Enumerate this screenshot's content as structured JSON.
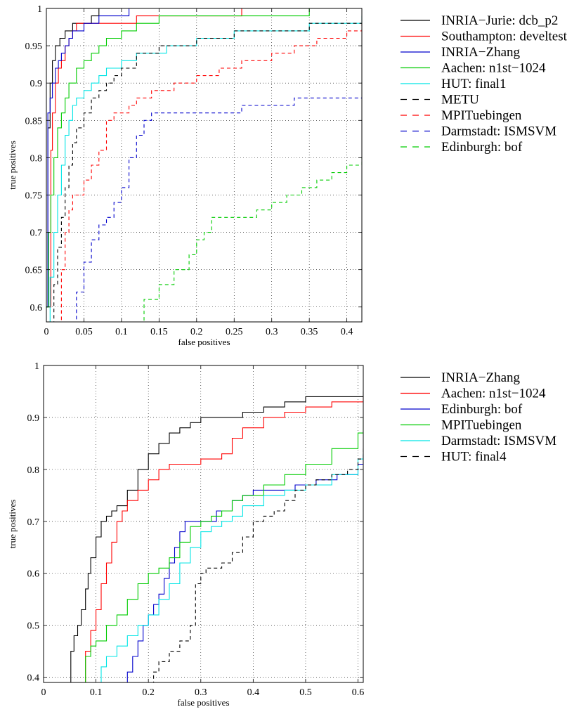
{
  "chart_data": [
    {
      "type": "line",
      "title": "",
      "xlabel": "false positives",
      "ylabel": "true positives",
      "xlim": [
        0,
        0.42
      ],
      "ylim": [
        0.58,
        1.0
      ],
      "xticks": [
        0,
        0.05,
        0.1,
        0.15,
        0.2,
        0.25,
        0.3,
        0.35,
        0.4
      ],
      "xtick_labels": [
        "0",
        "0.05",
        "0.1",
        "0.15",
        "0.2",
        "0.25",
        "0.3",
        "0.35",
        "0.4"
      ],
      "yticks": [
        0.6,
        0.65,
        0.7,
        0.75,
        0.8,
        0.85,
        0.9,
        0.95,
        1
      ],
      "ytick_labels": [
        "0.6",
        "0.65",
        "0.7",
        "0.75",
        "0.8",
        "0.85",
        "0.9",
        "0.95",
        "1"
      ],
      "grid": true,
      "legend_position": "outside-right",
      "series": [
        {
          "name": "INRIA−Jurie: dcb_p2",
          "color": "#000000",
          "dash": "solid",
          "x": [
            0.0,
            0.002,
            0.005,
            0.008,
            0.012,
            0.018,
            0.025,
            0.035,
            0.05,
            0.06,
            0.07,
            0.08,
            0.1,
            0.15,
            0.3,
            0.42
          ],
          "y": [
            0.6,
            0.84,
            0.9,
            0.93,
            0.95,
            0.96,
            0.97,
            0.98,
            0.98,
            0.99,
            1.0,
            1.0,
            1.0,
            1.0,
            1.0,
            1.0
          ]
        },
        {
          "name": "Southampton: develtest",
          "color": "#ff0000",
          "dash": "solid",
          "x": [
            0.004,
            0.006,
            0.008,
            0.012,
            0.016,
            0.02,
            0.025,
            0.03,
            0.035,
            0.04,
            0.05,
            0.06,
            0.08,
            0.12,
            0.2,
            0.26,
            0.3,
            0.42
          ],
          "y": [
            0.6,
            0.81,
            0.86,
            0.9,
            0.92,
            0.93,
            0.95,
            0.96,
            0.97,
            0.98,
            0.98,
            0.98,
            0.98,
            0.99,
            0.99,
            1.0,
            1.0,
            1.0
          ]
        },
        {
          "name": "INRIA−Zhang",
          "color": "#0000cc",
          "dash": "solid",
          "x": [
            0.0,
            0.002,
            0.005,
            0.008,
            0.012,
            0.016,
            0.02,
            0.025,
            0.03,
            0.035,
            0.04,
            0.05,
            0.06,
            0.07,
            0.08,
            0.11,
            0.16,
            0.25,
            0.42
          ],
          "y": [
            0.6,
            0.86,
            0.88,
            0.9,
            0.92,
            0.93,
            0.94,
            0.95,
            0.96,
            0.97,
            0.97,
            0.98,
            0.98,
            0.99,
            0.99,
            1.0,
            1.0,
            1.0,
            1.0
          ]
        },
        {
          "name": "Aachen: n1st−1024",
          "color": "#00cc00",
          "dash": "solid",
          "x": [
            0.0,
            0.003,
            0.006,
            0.01,
            0.015,
            0.02,
            0.025,
            0.03,
            0.04,
            0.05,
            0.06,
            0.07,
            0.08,
            0.1,
            0.12,
            0.15,
            0.2,
            0.25,
            0.3,
            0.35,
            0.42
          ],
          "y": [
            0.6,
            0.7,
            0.75,
            0.8,
            0.84,
            0.86,
            0.88,
            0.9,
            0.92,
            0.93,
            0.94,
            0.95,
            0.96,
            0.97,
            0.98,
            0.99,
            0.99,
            0.99,
            0.99,
            1.0,
            1.0
          ]
        },
        {
          "name": "HUT: final1",
          "color": "#00e5e5",
          "dash": "solid",
          "x": [
            0.0,
            0.005,
            0.01,
            0.015,
            0.02,
            0.025,
            0.03,
            0.035,
            0.04,
            0.05,
            0.06,
            0.07,
            0.08,
            0.1,
            0.12,
            0.14,
            0.16,
            0.18,
            0.2,
            0.25,
            0.3,
            0.35,
            0.4,
            0.42
          ],
          "y": [
            0.58,
            0.64,
            0.7,
            0.75,
            0.79,
            0.83,
            0.85,
            0.87,
            0.88,
            0.89,
            0.9,
            0.91,
            0.92,
            0.93,
            0.94,
            0.94,
            0.95,
            0.95,
            0.96,
            0.97,
            0.97,
            0.98,
            0.98,
            0.99
          ]
        },
        {
          "name": "METU",
          "color": "#000000",
          "dash": "dashed",
          "x": [
            0.006,
            0.01,
            0.015,
            0.02,
            0.025,
            0.03,
            0.035,
            0.04,
            0.05,
            0.06,
            0.07,
            0.08,
            0.09,
            0.1,
            0.12,
            0.15,
            0.2,
            0.25,
            0.3,
            0.35,
            0.42
          ],
          "y": [
            0.58,
            0.63,
            0.68,
            0.72,
            0.76,
            0.79,
            0.82,
            0.84,
            0.86,
            0.88,
            0.89,
            0.9,
            0.91,
            0.92,
            0.94,
            0.95,
            0.96,
            0.97,
            0.97,
            0.98,
            0.98
          ]
        },
        {
          "name": "MPITuebingen",
          "color": "#ff0000",
          "dash": "dashed",
          "x": [
            0.014,
            0.02,
            0.025,
            0.03,
            0.035,
            0.04,
            0.05,
            0.06,
            0.07,
            0.08,
            0.09,
            0.1,
            0.11,
            0.12,
            0.14,
            0.17,
            0.2,
            0.23,
            0.26,
            0.3,
            0.33,
            0.36,
            0.4,
            0.42
          ],
          "y": [
            0.58,
            0.65,
            0.7,
            0.73,
            0.75,
            0.75,
            0.77,
            0.79,
            0.81,
            0.85,
            0.86,
            0.86,
            0.87,
            0.88,
            0.89,
            0.9,
            0.91,
            0.92,
            0.93,
            0.94,
            0.95,
            0.96,
            0.97,
            0.98
          ]
        },
        {
          "name": "Darmstadt: ISMSVM",
          "color": "#0000cc",
          "dash": "dashed",
          "x": [
            0.035,
            0.04,
            0.05,
            0.06,
            0.07,
            0.08,
            0.09,
            0.1,
            0.11,
            0.12,
            0.13,
            0.14,
            0.16,
            0.19,
            0.22,
            0.26,
            0.3,
            0.33,
            0.35,
            0.4,
            0.42
          ],
          "y": [
            0.58,
            0.62,
            0.66,
            0.69,
            0.71,
            0.72,
            0.74,
            0.76,
            0.8,
            0.83,
            0.85,
            0.86,
            0.86,
            0.86,
            0.86,
            0.87,
            0.87,
            0.88,
            0.88,
            0.88,
            0.88
          ]
        },
        {
          "name": "Edinburgh: bof",
          "color": "#00cc00",
          "dash": "dashed",
          "x": [
            0.115,
            0.13,
            0.15,
            0.17,
            0.19,
            0.2,
            0.21,
            0.22,
            0.24,
            0.26,
            0.28,
            0.3,
            0.32,
            0.34,
            0.36,
            0.38,
            0.4,
            0.42
          ],
          "y": [
            0.58,
            0.61,
            0.63,
            0.65,
            0.67,
            0.69,
            0.7,
            0.72,
            0.72,
            0.72,
            0.73,
            0.74,
            0.75,
            0.76,
            0.77,
            0.78,
            0.79,
            0.8
          ]
        }
      ]
    },
    {
      "type": "line",
      "title": "",
      "xlabel": "false positives",
      "ylabel": "true positives",
      "xlim": [
        0,
        0.61
      ],
      "ylim": [
        0.39,
        1.0
      ],
      "xticks": [
        0,
        0.1,
        0.2,
        0.3,
        0.4,
        0.5,
        0.6
      ],
      "xtick_labels": [
        "0",
        "0.1",
        "0.2",
        "0.3",
        "0.4",
        "0.5",
        "0.6"
      ],
      "yticks": [
        0.4,
        0.5,
        0.6,
        0.7,
        0.8,
        0.9,
        1
      ],
      "ytick_labels": [
        "0.4",
        "0.5",
        "0.6",
        "0.7",
        "0.8",
        "0.9",
        "1"
      ],
      "grid": true,
      "legend_position": "outside-right",
      "series": [
        {
          "name": "INRIA−Zhang",
          "color": "#000000",
          "dash": "solid",
          "x": [
            0.048,
            0.052,
            0.058,
            0.065,
            0.072,
            0.08,
            0.085,
            0.09,
            0.1,
            0.11,
            0.12,
            0.13,
            0.14,
            0.16,
            0.18,
            0.2,
            0.22,
            0.24,
            0.26,
            0.28,
            0.3,
            0.34,
            0.38,
            0.42,
            0.46,
            0.5,
            0.55,
            0.61
          ],
          "y": [
            0.39,
            0.45,
            0.48,
            0.5,
            0.53,
            0.57,
            0.6,
            0.63,
            0.67,
            0.7,
            0.71,
            0.72,
            0.73,
            0.76,
            0.8,
            0.83,
            0.85,
            0.87,
            0.88,
            0.89,
            0.9,
            0.9,
            0.91,
            0.92,
            0.93,
            0.94,
            0.94,
            0.95
          ]
        },
        {
          "name": "Aachen: n1st−1024",
          "color": "#ff0000",
          "dash": "solid",
          "x": [
            0.072,
            0.08,
            0.09,
            0.1,
            0.11,
            0.12,
            0.13,
            0.14,
            0.15,
            0.16,
            0.18,
            0.2,
            0.22,
            0.24,
            0.26,
            0.3,
            0.34,
            0.36,
            0.38,
            0.42,
            0.46,
            0.5,
            0.55,
            0.61
          ],
          "y": [
            0.39,
            0.45,
            0.49,
            0.53,
            0.58,
            0.62,
            0.66,
            0.7,
            0.72,
            0.74,
            0.76,
            0.78,
            0.8,
            0.81,
            0.81,
            0.82,
            0.83,
            0.86,
            0.88,
            0.9,
            0.91,
            0.92,
            0.93,
            0.94
          ]
        },
        {
          "name": "Edinburgh: bof",
          "color": "#0000cc",
          "dash": "solid",
          "x": [
            0.152,
            0.16,
            0.17,
            0.18,
            0.19,
            0.2,
            0.21,
            0.22,
            0.23,
            0.24,
            0.25,
            0.26,
            0.27,
            0.28,
            0.3,
            0.33,
            0.36,
            0.38,
            0.4,
            0.44,
            0.48,
            0.52,
            0.56,
            0.6,
            0.61
          ],
          "y": [
            0.39,
            0.41,
            0.44,
            0.47,
            0.5,
            0.52,
            0.54,
            0.56,
            0.59,
            0.62,
            0.65,
            0.68,
            0.7,
            0.7,
            0.7,
            0.72,
            0.74,
            0.75,
            0.76,
            0.76,
            0.77,
            0.78,
            0.79,
            0.81,
            0.83
          ]
        },
        {
          "name": "MPITuebingen",
          "color": "#00cc00",
          "dash": "solid",
          "x": [
            0.075,
            0.08,
            0.09,
            0.1,
            0.12,
            0.14,
            0.16,
            0.18,
            0.2,
            0.22,
            0.24,
            0.26,
            0.28,
            0.3,
            0.32,
            0.34,
            0.36,
            0.38,
            0.42,
            0.46,
            0.5,
            0.55,
            0.6,
            0.61
          ],
          "y": [
            0.39,
            0.44,
            0.46,
            0.47,
            0.5,
            0.52,
            0.55,
            0.58,
            0.6,
            0.61,
            0.63,
            0.66,
            0.69,
            0.7,
            0.71,
            0.72,
            0.74,
            0.75,
            0.77,
            0.79,
            0.81,
            0.84,
            0.87,
            0.9
          ]
        },
        {
          "name": "Darmstadt: ISMSVM",
          "color": "#00e5e5",
          "dash": "solid",
          "x": [
            0.1,
            0.11,
            0.12,
            0.14,
            0.16,
            0.18,
            0.2,
            0.22,
            0.24,
            0.26,
            0.28,
            0.3,
            0.32,
            0.34,
            0.36,
            0.38,
            0.42,
            0.46,
            0.5,
            0.55,
            0.6,
            0.61
          ],
          "y": [
            0.39,
            0.42,
            0.44,
            0.46,
            0.48,
            0.5,
            0.52,
            0.55,
            0.58,
            0.62,
            0.65,
            0.68,
            0.69,
            0.7,
            0.71,
            0.73,
            0.75,
            0.76,
            0.77,
            0.79,
            0.82,
            0.83
          ]
        },
        {
          "name": "HUT: final4",
          "color": "#000000",
          "dash": "dashed",
          "x": [
            0.205,
            0.21,
            0.22,
            0.24,
            0.26,
            0.28,
            0.29,
            0.3,
            0.31,
            0.32,
            0.34,
            0.36,
            0.38,
            0.4,
            0.42,
            0.44,
            0.46,
            0.48,
            0.5,
            0.52,
            0.55,
            0.58,
            0.6,
            0.61
          ],
          "y": [
            0.39,
            0.41,
            0.43,
            0.45,
            0.47,
            0.5,
            0.58,
            0.6,
            0.61,
            0.61,
            0.62,
            0.64,
            0.67,
            0.7,
            0.71,
            0.72,
            0.74,
            0.76,
            0.77,
            0.78,
            0.79,
            0.8,
            0.82,
            0.84
          ]
        }
      ]
    }
  ]
}
